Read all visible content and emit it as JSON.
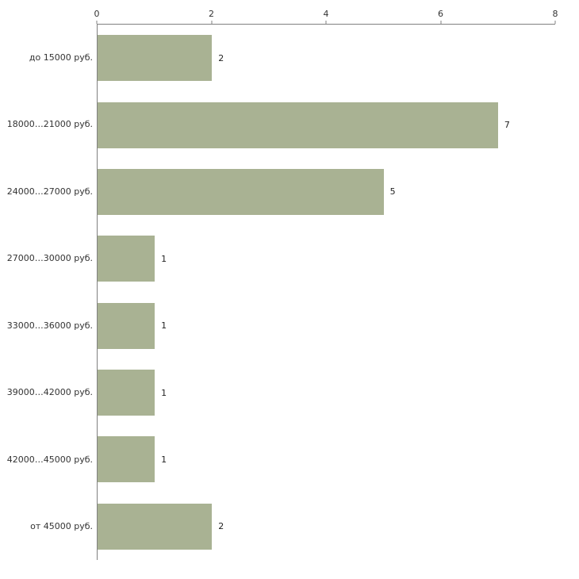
{
  "chart_data": {
    "type": "bar",
    "orientation": "horizontal",
    "title": "",
    "xlabel": "",
    "ylabel": "",
    "categories": [
      "до 15000 руб.",
      "18000…21000 руб.",
      "24000…27000 руб.",
      "27000…30000 руб.",
      "33000…36000 руб.",
      "39000…42000 руб.",
      "42000…45000 руб.",
      "от 45000 руб."
    ],
    "values": [
      2,
      7,
      5,
      1,
      1,
      1,
      1,
      2
    ],
    "x_ticks": [
      "0",
      "2",
      "4",
      "6",
      "8"
    ],
    "xlim": [
      0,
      8
    ],
    "grid": false,
    "legend": false,
    "bar_color": "#a9b293",
    "axis_color": "#808080",
    "label_color": "#333333",
    "background_color": "#ffffff"
  }
}
